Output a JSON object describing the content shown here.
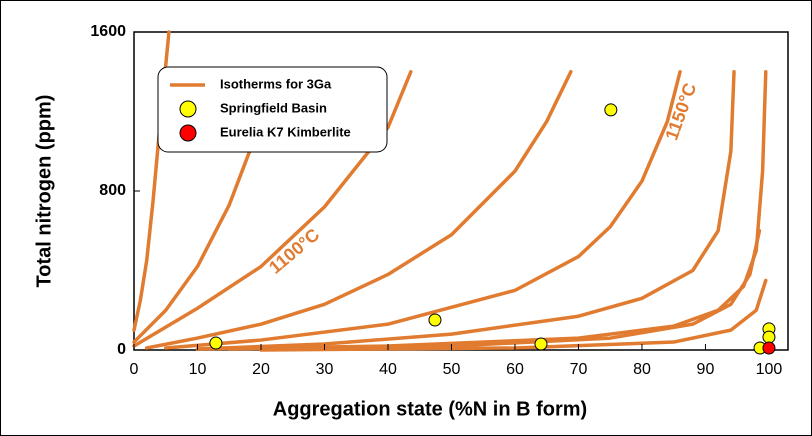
{
  "chart_data": {
    "type": "scatter",
    "x_label": "Aggregation state (%N in B form)",
    "y_label": "Total nitrogen (ppm)",
    "xlim": [
      0,
      103
    ],
    "ylim": [
      0,
      1600
    ],
    "xticks": [
      0,
      10,
      20,
      30,
      40,
      50,
      60,
      70,
      80,
      90,
      100
    ],
    "yticks": [
      0,
      800,
      1600
    ],
    "series": [
      {
        "name": "Springfield Basin",
        "color": "#ffff00",
        "x": [
          12.9,
          47.4,
          64.1,
          75.1,
          98.6,
          100,
          100
        ],
        "values": [
          35,
          151,
          30,
          1208,
          10,
          106,
          65
        ]
      },
      {
        "name": "Eurelia K7 Kimberlite",
        "color": "#ff0000",
        "x": [
          100
        ],
        "values": [
          10
        ]
      }
    ],
    "isotherms": {
      "name": "Isotherms for 3Ga",
      "color": "#e07b30",
      "curves": [
        {
          "x": [
            0,
            1,
            2,
            3,
            4,
            5.5
          ],
          "values": [
            100,
            250,
            450,
            750,
            1100,
            1600
          ]
        },
        {
          "x": [
            0,
            5,
            10,
            15,
            20,
            22
          ],
          "values": [
            40,
            200,
            420,
            730,
            1150,
            1400
          ]
        },
        {
          "x": [
            0,
            10,
            20,
            30,
            40,
            43.6
          ],
          "values": [
            20,
            210,
            420,
            720,
            1120,
            1400
          ]
        },
        {
          "x": [
            2,
            10,
            20,
            30,
            40,
            50,
            60,
            65,
            68.8
          ],
          "values": [
            10,
            60,
            130,
            230,
            380,
            580,
            900,
            1150,
            1400
          ]
        },
        {
          "x": [
            5,
            20,
            40,
            60,
            70,
            75,
            80,
            84,
            86
          ],
          "values": [
            10,
            50,
            130,
            300,
            470,
            620,
            850,
            1150,
            1400
          ]
        },
        {
          "x": [
            10,
            30,
            50,
            70,
            80,
            88,
            92,
            94,
            94.5
          ],
          "values": [
            5,
            30,
            80,
            170,
            260,
            400,
            600,
            1000,
            1400
          ]
        },
        {
          "x": [
            10,
            40,
            70,
            85,
            92,
            96,
            98,
            99,
            99.5
          ],
          "values": [
            5,
            20,
            60,
            120,
            200,
            320,
            500,
            900,
            1400
          ]
        },
        {
          "x": [
            15,
            50,
            75,
            88,
            94,
            97,
            98.5
          ],
          "values": [
            5,
            20,
            60,
            130,
            230,
            380,
            600
          ]
        },
        {
          "x": [
            20,
            60,
            85,
            94,
            98,
            99.5
          ],
          "values": [
            0,
            10,
            40,
            100,
            200,
            350
          ]
        }
      ]
    },
    "annotations": [
      "1100°C",
      "1150°C"
    ]
  }
}
